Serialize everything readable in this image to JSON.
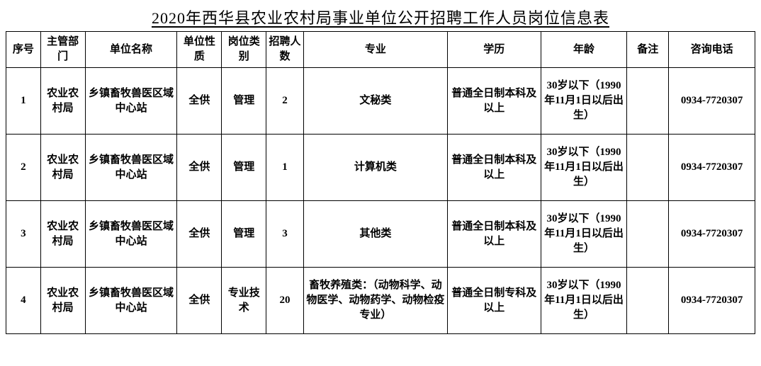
{
  "title": "2020年西华县农业农村局事业单位公开招聘工作人员岗位信息表",
  "columns": [
    "序号",
    "主管部门",
    "单位名称",
    "单位性质",
    "岗位类别",
    "招聘人数",
    "专业",
    "学历",
    "年龄",
    "备注",
    "咨询电话"
  ],
  "rows": [
    {
      "seq": "1",
      "dept": "农业农村局",
      "unit": "乡镇畜牧兽医区域中心站",
      "nature": "全供",
      "cat": "管理",
      "count": "2",
      "major": "文秘类",
      "edu": "普通全日制本科及以上",
      "age": "30岁以下（1990年11月1日以后出生）",
      "note": "",
      "phone": "0934-7720307"
    },
    {
      "seq": "2",
      "dept": "农业农村局",
      "unit": "乡镇畜牧兽医区域中心站",
      "nature": "全供",
      "cat": "管理",
      "count": "1",
      "major": "计算机类",
      "edu": "普通全日制本科及以上",
      "age": "30岁以下（1990年11月1日以后出生）",
      "note": "",
      "phone": "0934-7720307"
    },
    {
      "seq": "3",
      "dept": "农业农村局",
      "unit": "乡镇畜牧兽医区域中心站",
      "nature": "全供",
      "cat": "管理",
      "count": "3",
      "major": "其他类",
      "edu": "普通全日制本科及以上",
      "age": "30岁以下（1990年11月1日以后出生）",
      "note": "",
      "phone": "0934-7720307"
    },
    {
      "seq": "4",
      "dept": "农业农村局",
      "unit": "乡镇畜牧兽医区域中心站",
      "nature": "全供",
      "cat": "专业技术",
      "count": "20",
      "major": "畜牧养殖类：（动物科学、动物医学、动物药学、动物检疫专业）",
      "edu": "普通全日制专科及以上",
      "age": "30岁以下（1990年11月1日以后出生）",
      "note": "",
      "phone": "0934-7720307"
    }
  ]
}
